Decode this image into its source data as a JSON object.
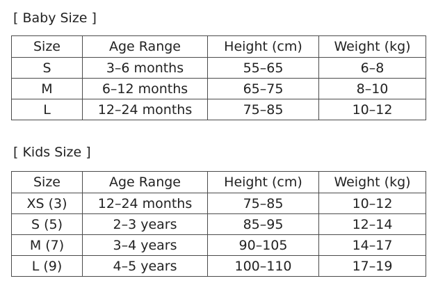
{
  "baby": {
    "title": "[ Baby Size ]",
    "headers": [
      "Size",
      "Age Range",
      "Height (cm)",
      "Weight (kg)"
    ],
    "rows": [
      [
        "S",
        "3–6 months",
        "55–65",
        "6–8"
      ],
      [
        "M",
        "6–12 months",
        "65–75",
        "8–10"
      ],
      [
        "L",
        "12–24 months",
        "75–85",
        "10–12"
      ]
    ]
  },
  "kids": {
    "title": "[ Kids Size ]",
    "headers": [
      "Size",
      "Age Range",
      "Height (cm)",
      "Weight (kg)"
    ],
    "rows": [
      [
        "XS (3)",
        "12–24 months",
        "75–85",
        "10–12"
      ],
      [
        "S (5)",
        "2–3 years",
        "85–95",
        "12–14"
      ],
      [
        "M (7)",
        "3–4 years",
        "90–105",
        "14–17"
      ],
      [
        "L (9)",
        "4–5 years",
        "100–110",
        "17–19"
      ]
    ]
  }
}
